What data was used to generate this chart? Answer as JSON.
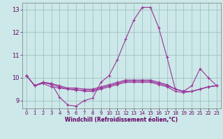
{
  "title": "",
  "xlabel": "Windchill (Refroidissement éolien,°C)",
  "ylabel": "",
  "background_color": "#cce8e8",
  "line_color": "#993399",
  "marker": "+",
  "x": [
    0,
    1,
    2,
    3,
    4,
    5,
    6,
    7,
    8,
    9,
    10,
    11,
    12,
    13,
    14,
    15,
    16,
    17,
    18,
    19,
    20,
    21,
    22,
    23
  ],
  "series": [
    [
      10.1,
      9.65,
      9.8,
      9.75,
      9.15,
      8.8,
      8.75,
      9.0,
      9.1,
      9.8,
      10.1,
      10.8,
      11.7,
      12.55,
      13.1,
      13.1,
      12.2,
      10.9,
      9.5,
      9.4,
      9.65,
      10.4,
      10.0,
      9.65
    ],
    [
      10.1,
      9.65,
      9.75,
      9.6,
      9.55,
      9.5,
      9.45,
      9.45,
      9.45,
      9.55,
      9.65,
      9.75,
      9.85,
      9.85,
      9.85,
      9.85,
      9.75,
      9.65,
      9.5,
      9.4,
      9.4,
      9.5,
      9.6,
      9.65
    ],
    [
      10.1,
      9.65,
      9.8,
      9.7,
      9.6,
      9.5,
      9.5,
      9.4,
      9.4,
      9.5,
      9.6,
      9.7,
      9.8,
      9.8,
      9.8,
      9.8,
      9.7,
      9.6,
      9.4,
      9.35,
      9.4,
      9.5,
      9.6,
      9.65
    ],
    [
      10.1,
      9.65,
      9.8,
      9.75,
      9.65,
      9.55,
      9.55,
      9.5,
      9.5,
      9.6,
      9.7,
      9.8,
      9.9,
      9.9,
      9.9,
      9.9,
      9.8,
      9.7,
      9.5,
      9.4,
      9.4,
      9.5,
      9.6,
      9.65
    ]
  ],
  "ylim": [
    8.65,
    13.3
  ],
  "yticks": [
    9,
    10,
    11,
    12,
    13
  ],
  "xticks": [
    0,
    1,
    2,
    3,
    4,
    5,
    6,
    7,
    8,
    9,
    10,
    11,
    12,
    13,
    14,
    15,
    16,
    17,
    18,
    19,
    20,
    21,
    22,
    23
  ],
  "grid_color": "#99bbbb",
  "tick_color": "#660066",
  "axis_color": "#777777",
  "font_color": "#660066"
}
